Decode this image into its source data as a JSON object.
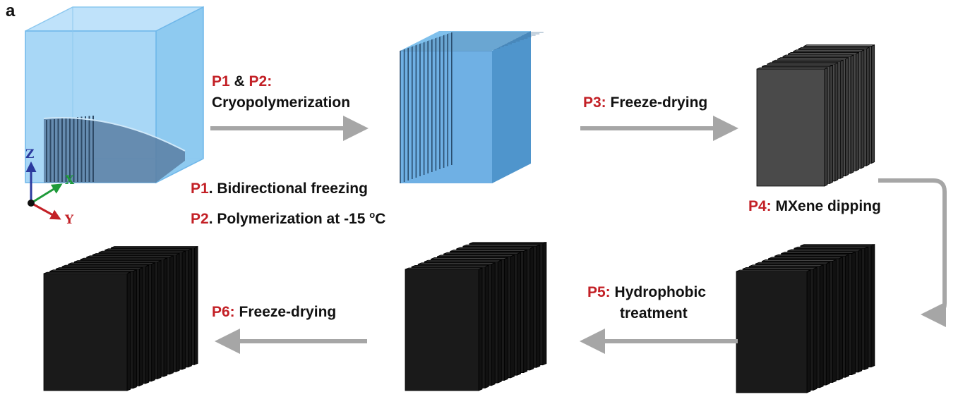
{
  "panel_label": "a",
  "axes": {
    "z": "Z",
    "x": "X",
    "y": "Y"
  },
  "steps": {
    "p1p2": {
      "a": "P1",
      "amp": " & ",
      "b": "P2:",
      "name": "Cryopolymerization"
    },
    "p1_note": {
      "tag": "P1",
      "text": ". Bidirectional freezing"
    },
    "p2_note": {
      "tag": "P2",
      "text": ". Polymerization at -15 ",
      "sup": "o",
      "unit": "C"
    },
    "p3": {
      "tag": "P3:",
      "text": " Freeze-drying"
    },
    "p4": {
      "tag": "P4:",
      "text": " MXene dipping"
    },
    "p5": {
      "tag": "P5:",
      "line1": " Hydrophobic",
      "line2": "treatment"
    },
    "p6": {
      "tag": "P6:",
      "text": " Freeze-drying"
    }
  },
  "colors": {
    "accent_red": "#c32026",
    "arrow_gray": "#a6a6a6",
    "water_blue": "#6fb7ea",
    "gray_scaffold": "#4a4a4a",
    "black_scaffold": "#1a1a1a",
    "axis_z": "#2b3a9e",
    "axis_x": "#1e9a3a",
    "axis_y": "#c32026"
  }
}
